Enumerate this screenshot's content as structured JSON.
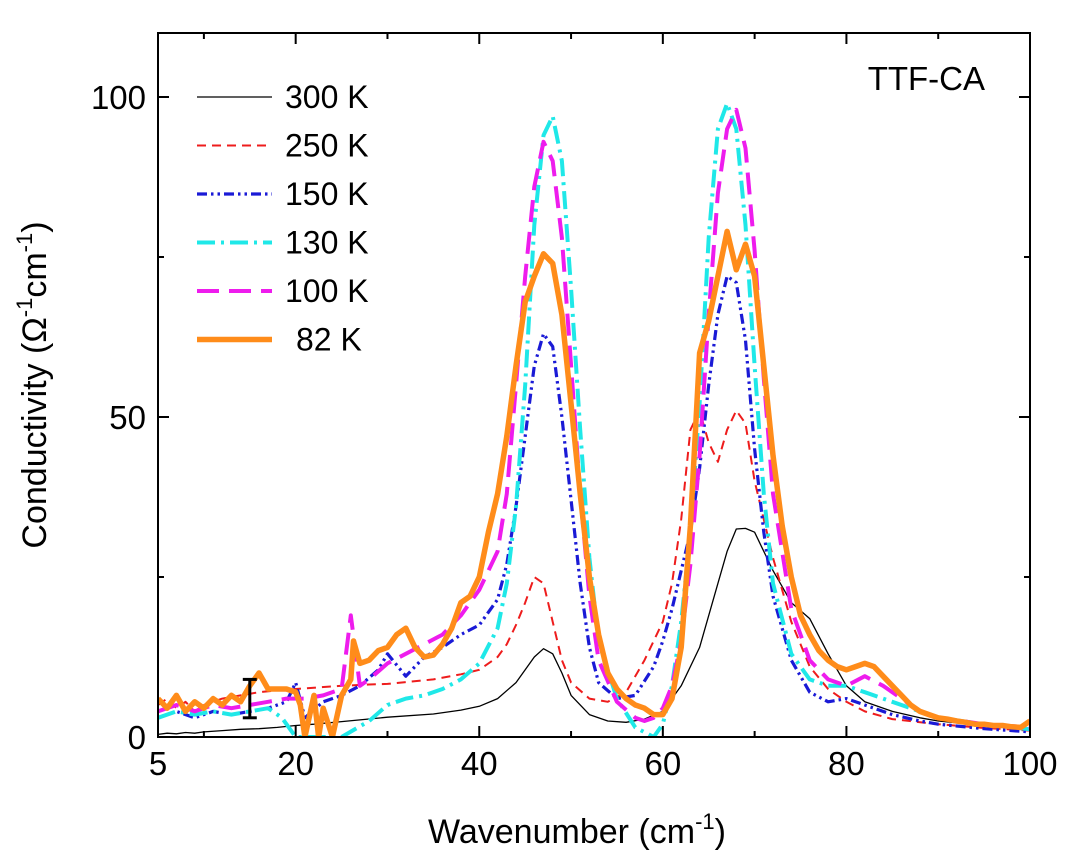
{
  "chart_data": {
    "type": "line",
    "title": "",
    "annotation": "TTF-CA",
    "xlabel": "Wavenumber (cm",
    "xlabel_sup": "-1",
    "xlabel_end": ")",
    "ylabel": "Conductivity (Ω",
    "ylabel_sup1": "-1",
    "ylabel_mid": "cm",
    "ylabel_sup2": "-1",
    "ylabel_end": ")",
    "xlim": [
      5,
      100
    ],
    "ylim": [
      0,
      110
    ],
    "xticks": [
      {
        "value": 5,
        "label": "5"
      },
      {
        "value": 20,
        "label": "20"
      },
      {
        "value": 40,
        "label": "40"
      },
      {
        "value": 60,
        "label": "60"
      },
      {
        "value": 80,
        "label": "80"
      },
      {
        "value": 100,
        "label": "100"
      }
    ],
    "yticks": [
      {
        "value": 0,
        "label": "0"
      },
      {
        "value": 50,
        "label": "50"
      },
      {
        "value": 100,
        "label": "100"
      }
    ],
    "error_bar": {
      "x": 15,
      "y_low": 3,
      "y_high": 9
    },
    "series": [
      {
        "name": "300 K",
        "color": "#000000",
        "dash": "solid",
        "width": 1.3,
        "x": [
          5,
          6,
          7,
          8,
          9,
          10,
          12,
          14,
          16,
          18,
          20,
          22,
          25,
          30,
          35,
          38,
          40,
          42,
          44,
          45,
          46,
          47,
          48,
          49,
          50,
          52,
          54,
          56,
          58,
          60,
          62,
          64,
          66,
          67,
          68,
          69,
          70,
          72,
          74,
          76,
          78,
          80,
          82,
          85,
          88,
          90,
          95,
          100
        ],
        "y": [
          0.4,
          0.6,
          0.5,
          0.7,
          0.6,
          0.8,
          1.0,
          1.2,
          1.3,
          1.5,
          1.8,
          2.0,
          2.4,
          3.1,
          3.6,
          4.2,
          4.8,
          6.0,
          8.5,
          10.5,
          12.5,
          13.8,
          13.0,
          10.0,
          6.5,
          3.5,
          2.5,
          2.3,
          2.8,
          4.0,
          8.0,
          14.0,
          24.0,
          29.0,
          32.5,
          32.6,
          32.0,
          26.0,
          21.0,
          18.5,
          13.0,
          8.0,
          5.5,
          4.0,
          3.0,
          2.5,
          1.8,
          1.2
        ]
      },
      {
        "name": "250 K",
        "color": "#ee1c1c",
        "dash": "9,6",
        "width": 2,
        "x": [
          5,
          6,
          7,
          8,
          9,
          10,
          12,
          14,
          16,
          18,
          20,
          22,
          25,
          28,
          30,
          35,
          38,
          40,
          42,
          43,
          44,
          45,
          46,
          47,
          48,
          49,
          50,
          52,
          54,
          56,
          58,
          60,
          61,
          62,
          63,
          64,
          65,
          66,
          67,
          68,
          69,
          70,
          72,
          74,
          76,
          78,
          80,
          82,
          85,
          90,
          95,
          100
        ],
        "y": [
          5.0,
          6.0,
          4.5,
          5.5,
          4.0,
          5.0,
          6.0,
          6.5,
          7.0,
          7.3,
          7.5,
          7.7,
          8.0,
          8.2,
          8.3,
          9.0,
          9.8,
          10.5,
          12.5,
          14.5,
          17.5,
          21.0,
          25.0,
          24.0,
          18.0,
          12.0,
          8.5,
          6.0,
          5.5,
          7.0,
          12.0,
          18.0,
          24.0,
          34.0,
          48.0,
          51.0,
          46.0,
          43.0,
          48.0,
          51.0,
          49.0,
          40.0,
          28.0,
          18.0,
          11.0,
          7.5,
          5.5,
          4.0,
          2.8,
          2.0,
          1.4,
          1.0
        ]
      },
      {
        "name": "150 K",
        "color": "#1a1ad6",
        "dash": "10,4,2.5,4,2.5,4",
        "width": 3.2,
        "x": [
          5,
          7,
          9,
          11,
          13,
          15,
          17,
          19,
          20,
          21,
          23,
          25,
          27,
          29,
          30,
          32,
          34,
          36,
          38,
          40,
          42,
          43,
          44,
          45,
          46,
          47,
          48,
          49,
          50,
          51,
          52,
          53,
          55,
          57,
          59,
          60,
          61,
          62,
          63,
          64,
          65,
          66,
          67,
          68,
          69,
          70,
          71,
          72,
          74,
          76,
          78,
          80,
          82,
          85,
          88,
          90,
          95,
          100
        ],
        "y": [
          3.0,
          4.0,
          3.0,
          4.0,
          3.5,
          4.0,
          4.5,
          5.5,
          8.5,
          3.0,
          5.5,
          6.5,
          8.0,
          10.5,
          13.0,
          9.5,
          12.5,
          14.0,
          16.0,
          17.5,
          21.5,
          27.0,
          36.0,
          47.0,
          58.0,
          63.0,
          61.0,
          50.0,
          37.0,
          24.0,
          14.0,
          8.5,
          6.0,
          6.5,
          11.0,
          15.0,
          20.0,
          26.0,
          32.0,
          42.0,
          55.0,
          66.0,
          72.0,
          71.0,
          62.0,
          45.0,
          32.0,
          22.0,
          12.0,
          7.0,
          5.5,
          6.0,
          5.0,
          3.5,
          2.5,
          2.0,
          1.3,
          0.8
        ]
      },
      {
        "name": "130 K",
        "color": "#1fe8e8",
        "dash": "18,6,3,6",
        "width": 4,
        "x": [
          5,
          7,
          9,
          11,
          13,
          15,
          17,
          18.5,
          20,
          22,
          25,
          28,
          30,
          32,
          34,
          36,
          38,
          40,
          42,
          43,
          44,
          45,
          46,
          47,
          48,
          49,
          50,
          51,
          52,
          53,
          55,
          57,
          59,
          60,
          61,
          62,
          63,
          64,
          65,
          66,
          67,
          68,
          69,
          70,
          71,
          72,
          74,
          76,
          78,
          80,
          82,
          85,
          88,
          90,
          95,
          100
        ],
        "y": [
          3.0,
          4.0,
          3.5,
          4.0,
          3.5,
          4.0,
          4.5,
          3.0,
          0.0,
          0.0,
          0.0,
          2.5,
          5.0,
          6.0,
          6.5,
          7.5,
          9.0,
          11.5,
          17.0,
          24.0,
          36.0,
          55.0,
          80.0,
          94.0,
          97.0,
          90.0,
          70.0,
          48.0,
          28.0,
          15.0,
          6.0,
          1.5,
          0.0,
          2.0,
          8.0,
          18.0,
          32.0,
          52.0,
          78.0,
          95.0,
          99.0,
          95.0,
          80.0,
          58.0,
          38.0,
          24.0,
          13.0,
          9.0,
          8.0,
          8.0,
          7.0,
          5.5,
          4.0,
          3.0,
          2.0,
          1.2
        ]
      },
      {
        "name": "100 K",
        "color": "#ee1ced",
        "dash": "22,10",
        "width": 4,
        "x": [
          5,
          7,
          9,
          11,
          13,
          15,
          17,
          19,
          21,
          23,
          25,
          26,
          27,
          28,
          30,
          32,
          34,
          36,
          38,
          40,
          42,
          43,
          44,
          45,
          46,
          47,
          48,
          49,
          50,
          51,
          52,
          53,
          55,
          57,
          58,
          59,
          60,
          61,
          62,
          63,
          64,
          65,
          66,
          67,
          68,
          69,
          70,
          71,
          72,
          74,
          76,
          78,
          80,
          82,
          84,
          86,
          88,
          90,
          95,
          100
        ],
        "y": [
          4.0,
          5.0,
          4.0,
          5.0,
          4.5,
          5.0,
          5.5,
          6.0,
          6.0,
          6.5,
          7.5,
          19.0,
          8.0,
          9.0,
          11.5,
          13.0,
          14.5,
          16.0,
          19.0,
          23.0,
          29.0,
          38.0,
          55.0,
          72.0,
          86.0,
          93.0,
          90.0,
          78.0,
          58.0,
          38.0,
          22.0,
          12.0,
          5.5,
          3.0,
          2.5,
          3.0,
          4.5,
          8.0,
          15.0,
          27.0,
          44.0,
          66.0,
          85.0,
          95.0,
          98.0,
          92.0,
          76.0,
          56.0,
          38.0,
          20.0,
          12.0,
          9.0,
          8.0,
          9.5,
          8.0,
          6.0,
          4.0,
          3.0,
          2.0,
          1.5
        ]
      },
      {
        "name": "82 K",
        "color": "#ff8c1a",
        "dash": "solid",
        "width": 5.5,
        "x": [
          5,
          6,
          7,
          8,
          9,
          10,
          11,
          12,
          13,
          14,
          15,
          16,
          17,
          18,
          19,
          20,
          20.5,
          21,
          22,
          22.5,
          23,
          24,
          25,
          26,
          26.3,
          27,
          28,
          29,
          30,
          31,
          32,
          33,
          34,
          35,
          36,
          37,
          38,
          39,
          40,
          41,
          42,
          43,
          44,
          45,
          46,
          47,
          48,
          49,
          50,
          51,
          52,
          53,
          54,
          55,
          56,
          57,
          58,
          59,
          60,
          61,
          62,
          63,
          64,
          65,
          66,
          67,
          68,
          69,
          70,
          71,
          72,
          73,
          74,
          75,
          76,
          77,
          78,
          79,
          80,
          81,
          82,
          83,
          84,
          85,
          86,
          87,
          88,
          89,
          90,
          91,
          92,
          93,
          94,
          95,
          96,
          97,
          98,
          99,
          100
        ],
        "y": [
          6.0,
          4.5,
          6.5,
          4.0,
          5.5,
          4.5,
          6.0,
          5.0,
          6.5,
          5.5,
          8.0,
          10.0,
          7.5,
          7.5,
          7.5,
          7.0,
          5.0,
          0.0,
          6.5,
          0.0,
          4.5,
          0.0,
          6.5,
          9.0,
          15.0,
          11.5,
          12.0,
          13.5,
          14.0,
          16.0,
          17.0,
          14.0,
          12.5,
          12.8,
          14.5,
          17.0,
          21.0,
          22.0,
          25.0,
          32.0,
          38.0,
          47.0,
          58.0,
          68.0,
          72.0,
          75.5,
          74.0,
          66.0,
          52.0,
          38.0,
          25.0,
          16.0,
          10.0,
          7.5,
          6.0,
          5.0,
          4.5,
          3.5,
          3.5,
          6.0,
          14.0,
          33.0,
          60.0,
          65.0,
          72.0,
          79.0,
          73.0,
          77.0,
          72.0,
          58.0,
          44.0,
          33.0,
          25.0,
          19.0,
          16.0,
          13.5,
          12.0,
          11.0,
          10.5,
          11.0,
          11.5,
          11.0,
          9.5,
          8.0,
          6.5,
          5.0,
          4.0,
          3.5,
          3.0,
          2.8,
          2.5,
          2.3,
          2.0,
          2.0,
          1.8,
          1.8,
          1.6,
          1.5,
          2.5
        ]
      }
    ]
  }
}
